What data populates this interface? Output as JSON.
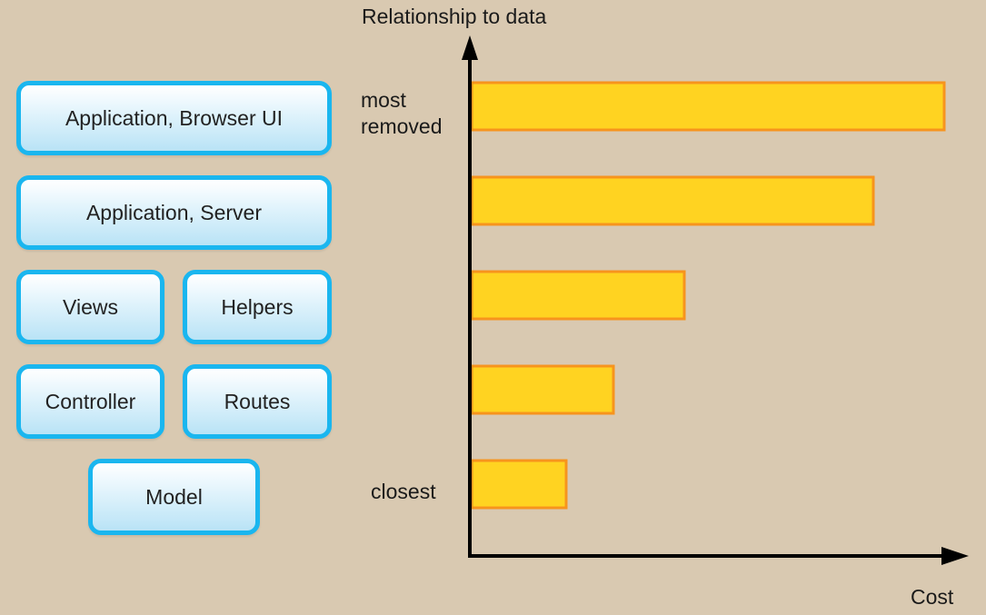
{
  "layers": {
    "app_browser": "Application, Browser UI",
    "app_server": "Application, Server",
    "views": "Views",
    "helpers": "Helpers",
    "controller": "Controller",
    "routes": "Routes",
    "model": "Model"
  },
  "chart_data": {
    "type": "bar",
    "orientation": "horizontal",
    "ylabel": "Relationship to data",
    "xlabel": "Cost",
    "y_tick_labels": {
      "top": "most\nremoved",
      "bottom": "closest"
    },
    "categories": [
      "most removed",
      "",
      "",
      "",
      "closest"
    ],
    "values": [
      100,
      85,
      45,
      30,
      20
    ],
    "xlim": [
      0,
      100
    ],
    "bar_color": "#ffd321",
    "bar_border_color": "#f7941d",
    "grid": false
  },
  "colors": {
    "background": "#d9c9b1",
    "box_border": "#1ab6ef",
    "box_fill_bottom": "#b9e3f6",
    "axis": "#000000"
  }
}
